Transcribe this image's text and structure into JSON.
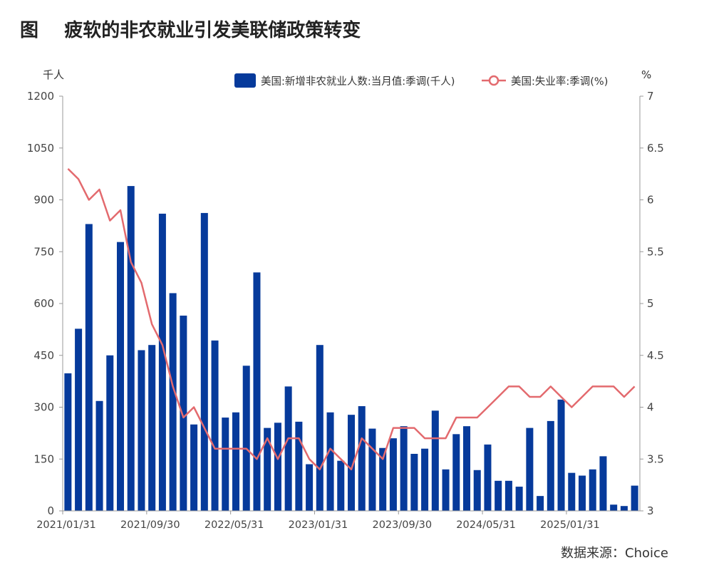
{
  "figure": {
    "title": "图    疲软的非农就业引发美联储政策转变",
    "source": "数据来源：Choice"
  },
  "chart_data": {
    "type": "bar+line",
    "y_left": {
      "unit": "千人",
      "min": 0,
      "max": 1200,
      "ticks": [
        0,
        150,
        300,
        450,
        600,
        750,
        900,
        1050,
        1200
      ]
    },
    "y_right": {
      "unit": "%",
      "min": 3,
      "max": 7,
      "ticks": [
        "3",
        "3.5",
        "4",
        "4.5",
        "5",
        "5.5",
        "6",
        "6.5",
        "7"
      ]
    },
    "x_tick_labels": [
      "2021/01/31",
      "2021/09/30",
      "2022/05/31",
      "2023/01/31",
      "2023/09/30",
      "2024/05/31",
      "2025/01/31"
    ],
    "x_tick_indices": [
      0,
      8,
      16,
      24,
      32,
      40,
      48
    ],
    "categories": [
      "2021/01",
      "2021/02",
      "2021/03",
      "2021/04",
      "2021/05",
      "2021/06",
      "2021/07",
      "2021/08",
      "2021/09",
      "2021/10",
      "2021/11",
      "2021/12",
      "2022/01",
      "2022/02",
      "2022/03",
      "2022/04",
      "2022/05",
      "2022/06",
      "2022/07",
      "2022/08",
      "2022/09",
      "2022/10",
      "2022/11",
      "2022/12",
      "2023/01",
      "2023/02",
      "2023/03",
      "2023/04",
      "2023/05",
      "2023/06",
      "2023/07",
      "2023/08",
      "2023/09",
      "2023/10",
      "2023/11",
      "2023/12",
      "2024/01",
      "2024/02",
      "2024/03",
      "2024/04",
      "2024/05",
      "2024/06",
      "2024/07",
      "2024/08",
      "2024/09",
      "2024/10",
      "2024/11",
      "2024/12",
      "2025/01",
      "2025/02",
      "2025/03",
      "2025/04",
      "2025/05",
      "2025/06",
      "2025/07"
    ],
    "series": [
      {
        "name": "美国:新增非农就业人数:当月值:季调(千人)",
        "type": "bar",
        "axis": "left",
        "color": "#063a9b",
        "values": [
          398,
          527,
          830,
          318,
          450,
          778,
          940,
          465,
          480,
          860,
          630,
          565,
          250,
          862,
          493,
          270,
          285,
          420,
          690,
          240,
          255,
          360,
          258,
          135,
          480,
          285,
          145,
          278,
          303,
          238,
          182,
          210,
          245,
          165,
          180,
          290,
          120,
          222,
          245,
          118,
          192,
          87,
          87,
          70,
          240,
          43,
          260,
          322,
          110,
          102,
          120,
          158,
          18,
          14,
          73
        ]
      },
      {
        "name": "美国:失业率:季调(%)",
        "type": "line",
        "axis": "right",
        "color": "#e36a6e",
        "values": [
          6.3,
          6.2,
          6.0,
          6.1,
          5.8,
          5.9,
          5.4,
          5.2,
          4.8,
          4.6,
          4.2,
          3.9,
          4.0,
          3.8,
          3.6,
          3.6,
          3.6,
          3.6,
          3.5,
          3.7,
          3.5,
          3.7,
          3.7,
          3.5,
          3.4,
          3.6,
          3.5,
          3.4,
          3.7,
          3.6,
          3.5,
          3.8,
          3.8,
          3.8,
          3.7,
          3.7,
          3.7,
          3.9,
          3.9,
          3.9,
          4.0,
          4.1,
          4.2,
          4.2,
          4.1,
          4.1,
          4.2,
          4.1,
          4.0,
          4.1,
          4.2,
          4.2,
          4.2,
          4.1,
          4.2
        ]
      }
    ]
  }
}
